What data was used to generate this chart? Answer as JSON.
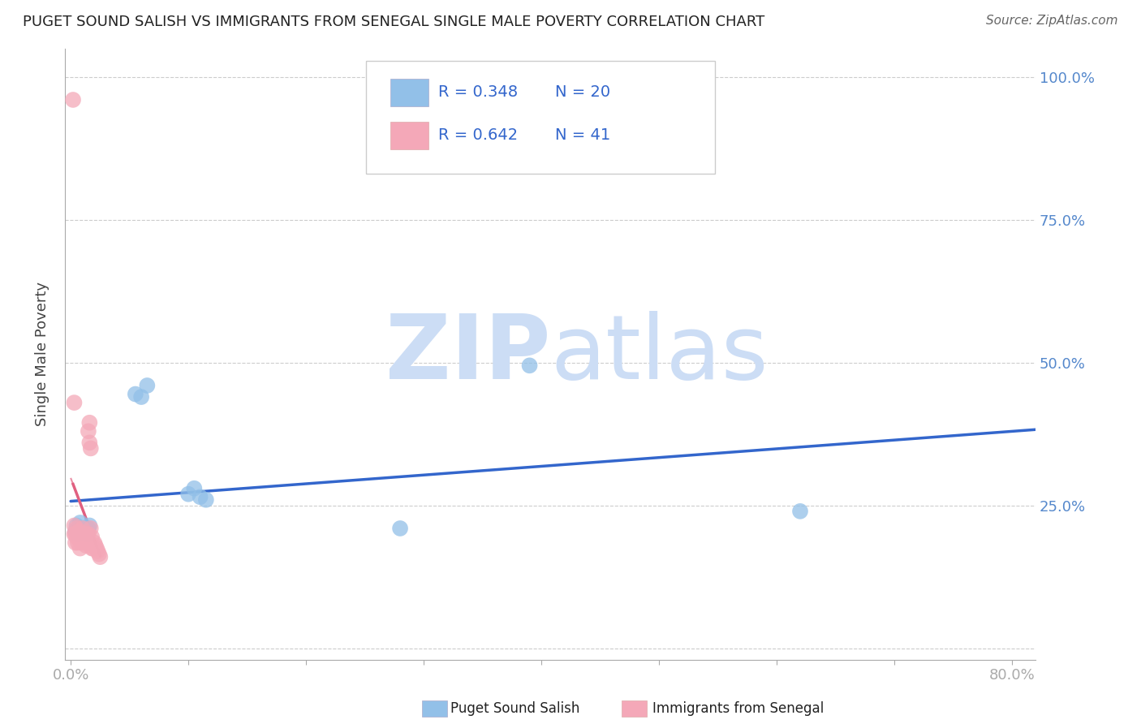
{
  "title": "PUGET SOUND SALISH VS IMMIGRANTS FROM SENEGAL SINGLE MALE POVERTY CORRELATION CHART",
  "source": "Source: ZipAtlas.com",
  "xlabel_ticks": [
    "0.0%",
    "",
    "",
    "",
    "",
    "",
    "",
    "",
    "80.0%"
  ],
  "xlabel_values": [
    0.0,
    0.1,
    0.2,
    0.3,
    0.4,
    0.5,
    0.6,
    0.7,
    0.8
  ],
  "ylabel_ticks": [
    "",
    "25.0%",
    "50.0%",
    "75.0%",
    "100.0%"
  ],
  "ylabel_values": [
    0.0,
    0.25,
    0.5,
    0.75,
    1.0
  ],
  "ylabel_label": "Single Male Poverty",
  "legend_label1": "Puget Sound Salish",
  "legend_label2": "Immigrants from Senegal",
  "R1": 0.348,
  "N1": 20,
  "R2": 0.642,
  "N2": 41,
  "blue_color": "#92c0e8",
  "pink_color": "#f4a8b8",
  "blue_line_color": "#3366cc",
  "pink_line_color": "#e06080",
  "watermark": "ZIPatlas",
  "watermark_color": "#ccddf5",
  "blue_x": [
    0.004,
    0.005,
    0.006,
    0.007,
    0.008,
    0.01,
    0.012,
    0.014,
    0.015,
    0.016,
    0.055,
    0.06,
    0.065,
    0.1,
    0.105,
    0.11,
    0.115,
    0.28,
    0.39,
    0.62
  ],
  "blue_y": [
    0.205,
    0.215,
    0.2,
    0.21,
    0.22,
    0.21,
    0.205,
    0.2,
    0.21,
    0.215,
    0.445,
    0.44,
    0.46,
    0.27,
    0.28,
    0.265,
    0.26,
    0.21,
    0.495,
    0.24
  ],
  "pink_x": [
    0.002,
    0.003,
    0.003,
    0.004,
    0.004,
    0.005,
    0.005,
    0.006,
    0.006,
    0.007,
    0.007,
    0.008,
    0.008,
    0.009,
    0.009,
    0.01,
    0.01,
    0.011,
    0.011,
    0.012,
    0.012,
    0.013,
    0.013,
    0.014,
    0.014,
    0.015,
    0.015,
    0.016,
    0.016,
    0.017,
    0.017,
    0.018,
    0.018,
    0.019,
    0.02,
    0.021,
    0.022,
    0.023,
    0.024,
    0.025,
    0.003
  ],
  "pink_y": [
    0.96,
    0.2,
    0.215,
    0.185,
    0.2,
    0.195,
    0.21,
    0.185,
    0.2,
    0.19,
    0.205,
    0.175,
    0.195,
    0.2,
    0.185,
    0.195,
    0.21,
    0.19,
    0.2,
    0.185,
    0.195,
    0.18,
    0.2,
    0.195,
    0.185,
    0.2,
    0.38,
    0.395,
    0.36,
    0.21,
    0.35,
    0.175,
    0.195,
    0.175,
    0.185,
    0.18,
    0.175,
    0.17,
    0.165,
    0.16,
    0.43
  ],
  "xlim": [
    -0.005,
    0.82
  ],
  "ylim": [
    -0.02,
    1.05
  ],
  "right_ytick_labels": [
    "100.0%",
    "75.0%",
    "50.0%",
    "25.0%"
  ],
  "right_ytick_values": [
    1.0,
    0.75,
    0.5,
    0.25
  ]
}
